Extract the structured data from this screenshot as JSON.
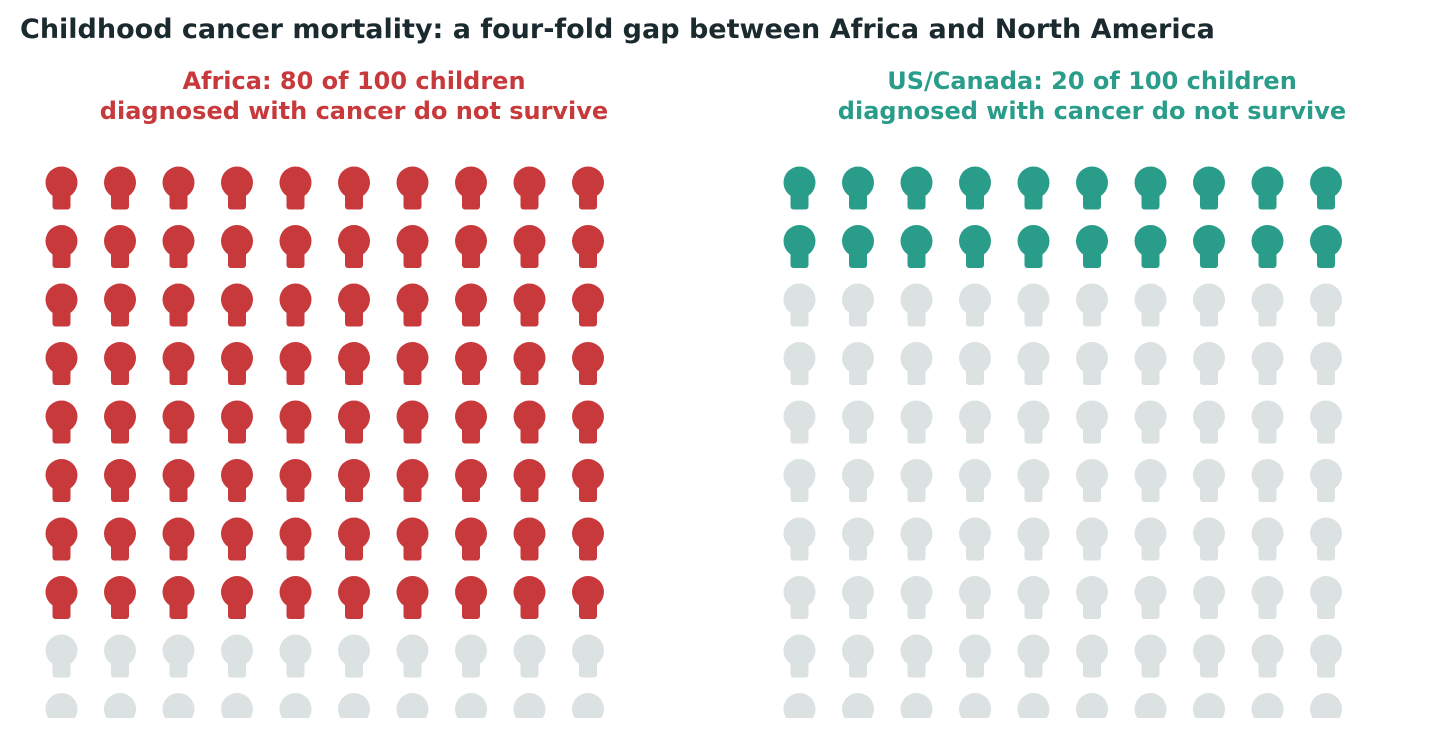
{
  "title": "Childhood cancer mortality: a four-fold gap between Africa and North America",
  "colors": {
    "title": "#1b2a2f",
    "africa": "#c8393c",
    "us_canada": "#2a9d8a",
    "inactive": "#dbe2e1"
  },
  "chart_data": [
    {
      "type": "waffle",
      "region": "Africa",
      "title_lines": [
        "Africa: 80 of 100 children",
        "diagnosed with cancer do not survive"
      ],
      "total": 100,
      "value": 80,
      "rows": 10,
      "cols": 10,
      "active_color": "#c8393c",
      "inactive_color": "#dbe2e1",
      "icon": "person-icon"
    },
    {
      "type": "waffle",
      "region": "US/Canada",
      "title_lines": [
        "US/Canada: 20 of 100 children",
        "diagnosed with cancer do not survive"
      ],
      "total": 100,
      "value": 20,
      "rows": 10,
      "cols": 10,
      "active_color": "#2a9d8a",
      "inactive_color": "#dbe2e1",
      "icon": "person-icon"
    }
  ]
}
